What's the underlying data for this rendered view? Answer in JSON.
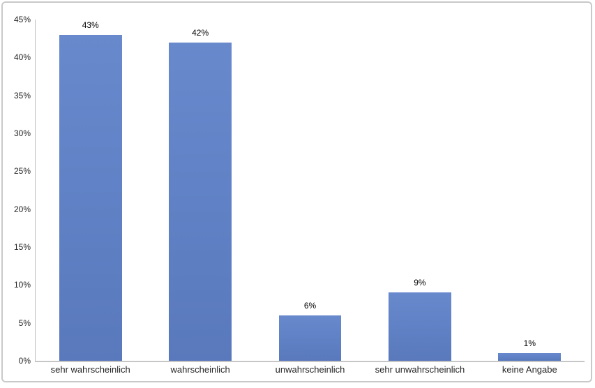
{
  "chart_data": {
    "type": "bar",
    "categories": [
      "sehr wahrscheinlich",
      "wahrscheinlich",
      "unwahrscheinlich",
      "sehr unwahrscheinlich",
      "keine Angabe"
    ],
    "values": [
      43,
      42,
      6,
      9,
      1
    ],
    "value_labels": [
      "43%",
      "42%",
      "6%",
      "9%",
      "1%"
    ],
    "title": "",
    "xlabel": "",
    "ylabel": "",
    "ylim": [
      0,
      45
    ],
    "y_tick_step": 5,
    "y_tick_labels": [
      "0%",
      "5%",
      "10%",
      "15%",
      "20%",
      "25%",
      "30%",
      "35%",
      "40%",
      "45%"
    ],
    "grid": false,
    "legend_position": "none",
    "bar_color": "#6182C6",
    "bar_gradient_top": "#6889CC",
    "bar_gradient_bottom": "#5979BC",
    "axis_line_color": "#C6C6C6",
    "frame_border_color": "#C9C9C9",
    "text_color": "#262626",
    "background_color": "#FFFFFF"
  }
}
